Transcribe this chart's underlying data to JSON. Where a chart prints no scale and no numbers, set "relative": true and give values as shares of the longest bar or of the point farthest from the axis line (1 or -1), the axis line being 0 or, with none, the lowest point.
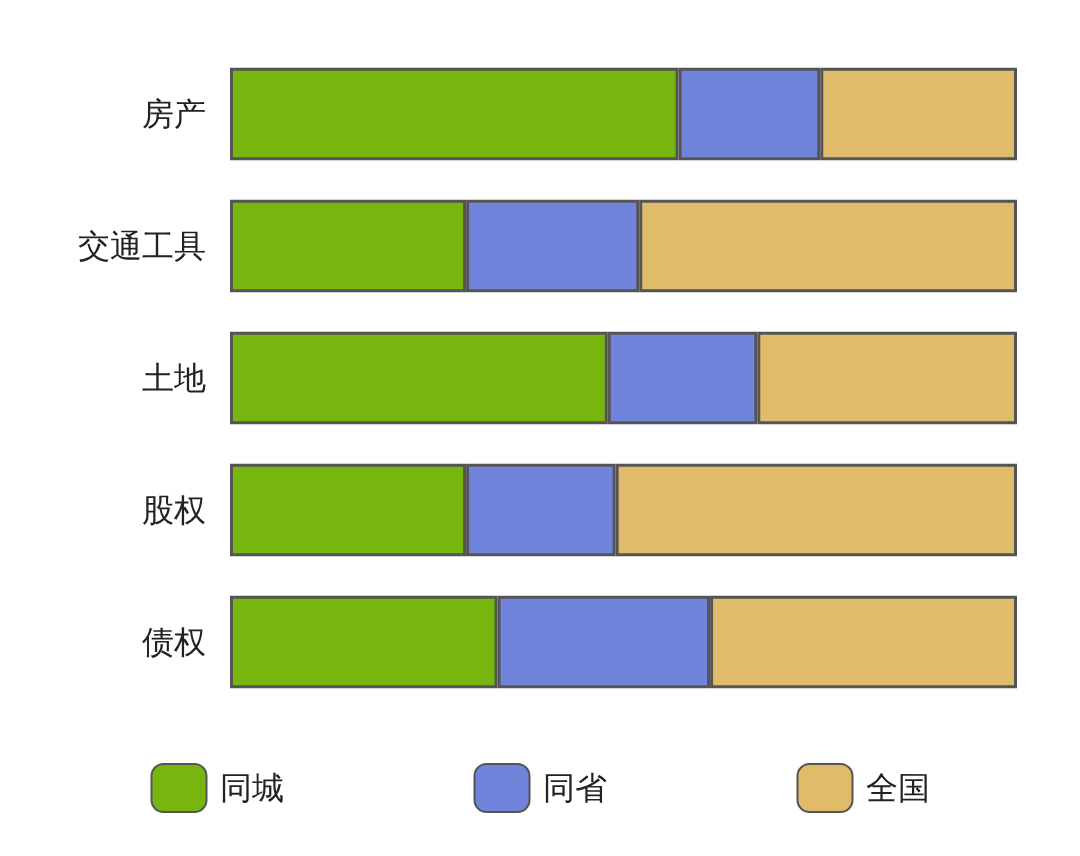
{
  "chart_data": {
    "type": "bar",
    "orientation": "horizontal",
    "stacked": true,
    "relative": true,
    "legend": "bottom",
    "categories": [
      "房产",
      "交通工具",
      "土地",
      "股权",
      "债权"
    ],
    "series": [
      {
        "name": "同城",
        "color": "#76b60f",
        "values": [
          0.57,
          0.3,
          0.48,
          0.3,
          0.34
        ]
      },
      {
        "name": "同省",
        "color": "#7084dc",
        "values": [
          0.18,
          0.22,
          0.19,
          0.19,
          0.27
        ]
      },
      {
        "name": "全国",
        "color": "#e0bb6a",
        "values": [
          0.25,
          0.48,
          0.33,
          0.51,
          0.39
        ]
      }
    ]
  }
}
